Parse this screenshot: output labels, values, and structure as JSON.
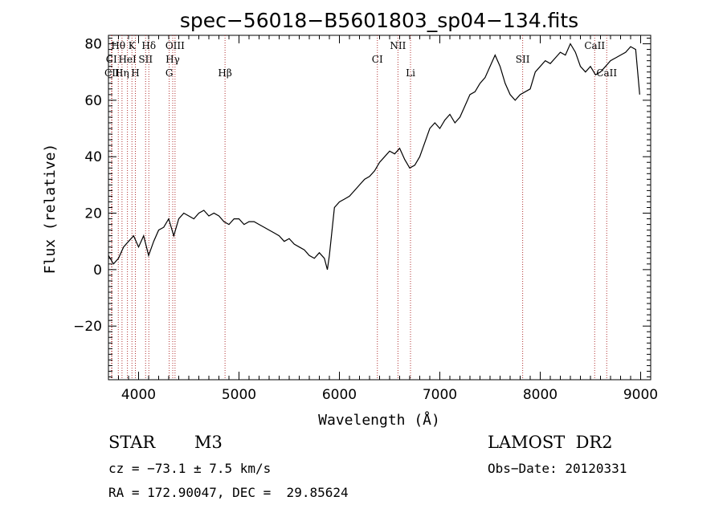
{
  "chart_data": {
    "type": "line",
    "title": "spec−56018−B5601803_sp04−134.fits",
    "xlabel": "Wavelength (Å)",
    "ylabel": "Flux (relative)",
    "xlim": [
      3700,
      9100
    ],
    "ylim": [
      -39,
      83
    ],
    "xticks": [
      4000,
      5000,
      6000,
      7000,
      8000,
      9000
    ],
    "xtick_labels": [
      "4000",
      "5000",
      "6000",
      "7000",
      "8000",
      "9000"
    ],
    "yticks": [
      -20,
      0,
      20,
      40,
      60,
      80
    ],
    "ytick_labels": [
      "−20",
      "0",
      "20",
      "40",
      "60",
      "80"
    ],
    "series": [
      {
        "name": "flux",
        "x": [
          3700,
          3750,
          3800,
          3850,
          3900,
          3950,
          4000,
          4050,
          4100,
          4150,
          4200,
          4250,
          4300,
          4350,
          4400,
          4450,
          4500,
          4550,
          4600,
          4650,
          4700,
          4750,
          4800,
          4850,
          4900,
          4950,
          5000,
          5050,
          5100,
          5150,
          5200,
          5250,
          5300,
          5350,
          5400,
          5450,
          5500,
          5550,
          5600,
          5650,
          5700,
          5750,
          5800,
          5850,
          5880,
          5900,
          5950,
          6000,
          6050,
          6100,
          6150,
          6200,
          6250,
          6300,
          6350,
          6400,
          6450,
          6500,
          6550,
          6600,
          6650,
          6700,
          6750,
          6800,
          6850,
          6900,
          6950,
          7000,
          7050,
          7100,
          7150,
          7200,
          7250,
          7300,
          7350,
          7400,
          7450,
          7500,
          7550,
          7600,
          7650,
          7700,
          7750,
          7800,
          7850,
          7900,
          7950,
          8000,
          8050,
          8100,
          8150,
          8200,
          8250,
          8300,
          8350,
          8400,
          8450,
          8500,
          8550,
          8600,
          8650,
          8700,
          8750,
          8800,
          8850,
          8900,
          8950,
          8990
        ],
        "values": [
          5,
          2,
          4,
          8,
          10,
          12,
          8,
          12,
          5,
          10,
          14,
          15,
          18,
          12,
          18,
          20,
          19,
          18,
          20,
          21,
          19,
          20,
          19,
          17,
          16,
          18,
          18,
          16,
          17,
          17,
          16,
          15,
          14,
          13,
          12,
          10,
          11,
          9,
          8,
          7,
          5,
          4,
          6,
          4,
          0,
          5,
          22,
          24,
          25,
          26,
          28,
          30,
          32,
          33,
          35,
          38,
          40,
          42,
          41,
          43,
          39,
          36,
          37,
          40,
          45,
          50,
          52,
          50,
          53,
          55,
          52,
          54,
          58,
          62,
          63,
          66,
          68,
          72,
          76,
          72,
          66,
          62,
          60,
          62,
          63,
          64,
          70,
          72,
          74,
          73,
          75,
          77,
          76,
          80,
          77,
          72,
          70,
          72,
          69,
          70,
          72,
          74,
          75,
          76,
          77,
          79,
          78,
          62
        ],
        "color": "#000000"
      }
    ],
    "spectral_lines": [
      {
        "label": "Hθ",
        "x": 3798,
        "row": 1
      },
      {
        "label": "K",
        "x": 3934,
        "row": 1
      },
      {
        "label": "Hδ",
        "x": 4102,
        "row": 1
      },
      {
        "label": "OIII",
        "x": 4363,
        "row": 1
      },
      {
        "label": "NII",
        "x": 6583,
        "row": 1
      },
      {
        "label": "CaII",
        "x": 8542,
        "row": 1
      },
      {
        "label": "CI",
        "x": 3730,
        "row": 2
      },
      {
        "label": "HeI",
        "x": 3889,
        "row": 2
      },
      {
        "label": "SII",
        "x": 4070,
        "row": 2
      },
      {
        "label": "Hγ",
        "x": 4340,
        "row": 2
      },
      {
        "label": "CI",
        "x": 6378,
        "row": 2
      },
      {
        "label": "SII",
        "x": 7825,
        "row": 2
      },
      {
        "label": "CII",
        "x": 3735,
        "row": 3
      },
      {
        "label": "Hη",
        "x": 3835,
        "row": 3
      },
      {
        "label": "H",
        "x": 3968,
        "row": 3
      },
      {
        "label": "G",
        "x": 4305,
        "row": 3
      },
      {
        "label": "Hβ",
        "x": 4861,
        "row": 3
      },
      {
        "label": "Li",
        "x": 6708,
        "row": 3
      },
      {
        "label": "CaII",
        "x": 8662,
        "row": 3
      }
    ],
    "line_color": "#b03030"
  },
  "info": {
    "object_class": "STAR",
    "subclass": "M3",
    "survey": "LAMOST  DR2",
    "cz": "cz = −73.1 ± 7.5 km/s",
    "obs_date": "Obs−Date: 20120331",
    "coords": "RA = 172.90047, DEC =  29.85624"
  }
}
